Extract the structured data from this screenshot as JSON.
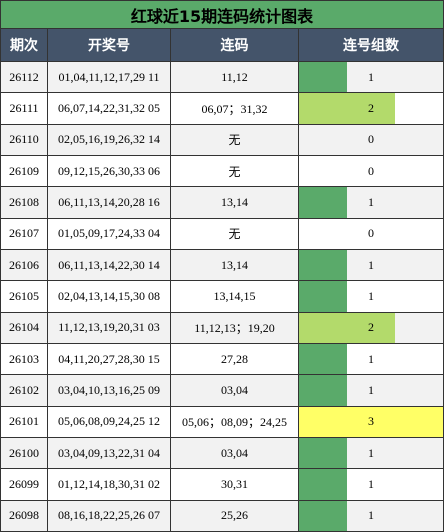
{
  "title": "红球近15期连码统计图表",
  "table": {
    "header": [
      "期次",
      "开奖号",
      "连码",
      "连号组数"
    ],
    "rows": [
      [
        "26112",
        "01,04,11,12,17,29 11",
        "11,12",
        1
      ],
      [
        "26111",
        "06,07,14,22,31,32 05",
        "06,07；31,32",
        2
      ],
      [
        "26110",
        "02,05,16,19,26,32 14",
        "无",
        0
      ],
      [
        "26109",
        "09,12,15,26,30,33 06",
        "无",
        0
      ],
      [
        "26108",
        "06,11,13,14,20,28 16",
        "13,14",
        1
      ],
      [
        "26107",
        "01,05,09,17,24,33 04",
        "无",
        0
      ],
      [
        "26106",
        "06,11,13,14,22,30 14",
        "13,14",
        1
      ],
      [
        "26105",
        "02,04,13,14,15,30 08",
        "13,14,15",
        1
      ],
      [
        "26104",
        "11,12,13,19,20,31 03",
        "11,12,13；19,20",
        2
      ],
      [
        "26103",
        "04,11,20,27,28,30 15",
        "27,28",
        1
      ],
      [
        "26102",
        "03,04,10,13,16,25 09",
        "03,04",
        1
      ],
      [
        "26101",
        "05,06,08,09,24,25 12",
        "05,06；08,09；24,25",
        3
      ],
      [
        "26100",
        "03,04,09,13,22,31 04",
        "03,04",
        1
      ],
      [
        "26099",
        "01,12,14,18,30,31 02",
        "30,31",
        1
      ],
      [
        "26098",
        "08,16,18,22,25,26 07",
        "25,26",
        1
      ]
    ],
    "bar_colors": [
      "#5aaa6a",
      "#b3da6b",
      "#ffff66"
    ]
  }
}
